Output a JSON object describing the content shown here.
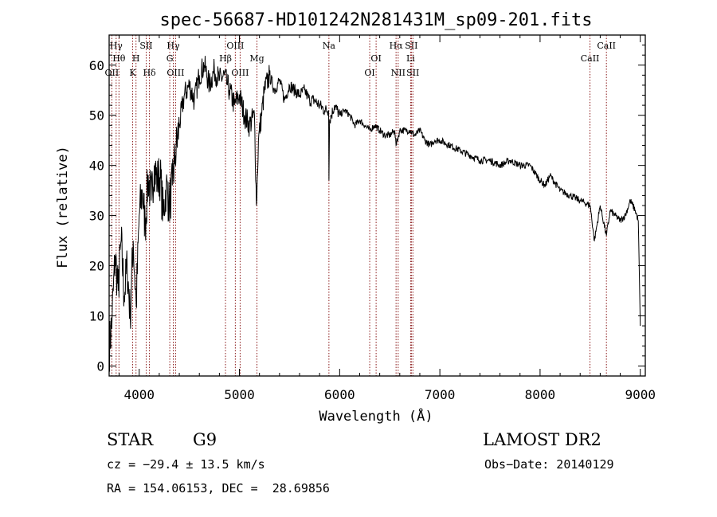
{
  "chart_data": {
    "type": "line",
    "title": "spec-56687-HD101242N281431M_sp09-201.fits",
    "xlabel": "Wavelength (Å)",
    "ylabel": "Flux (relative)",
    "xlim": [
      3700,
      9050
    ],
    "ylim": [
      -2,
      66
    ],
    "xticks": [
      4000,
      5000,
      6000,
      7000,
      8000,
      9000
    ],
    "yticks": [
      0,
      10,
      20,
      30,
      40,
      50,
      60
    ],
    "line_color": "#000000",
    "marker_color": "#8b1a1a",
    "series": [
      {
        "x": [
          3700,
          3730,
          3760,
          3790,
          3820,
          3850,
          3880,
          3910,
          3940,
          3970,
          4000,
          4030,
          4060,
          4090,
          4120,
          4150,
          4180,
          4210,
          4240,
          4270,
          4300,
          4330,
          4360,
          4400,
          4450,
          4500,
          4550,
          4600,
          4650,
          4700,
          4750,
          4800,
          4850,
          4880,
          4900,
          4950,
          5000,
          5050,
          5100,
          5150,
          5170,
          5190,
          5250,
          5300,
          5350,
          5400,
          5450,
          5500,
          5550,
          5600,
          5650,
          5700,
          5750,
          5800,
          5850,
          5890,
          5893,
          5900,
          5950,
          6000,
          6050,
          6100,
          6150,
          6200,
          6250,
          6300,
          6350,
          6400,
          6450,
          6500,
          6550,
          6563,
          6600,
          6650,
          6700,
          6750,
          6800,
          6850,
          6900,
          6950,
          7000,
          7100,
          7200,
          7300,
          7400,
          7500,
          7600,
          7700,
          7800,
          7900,
          8000,
          8050,
          8100,
          8200,
          8300,
          8400,
          8500,
          8542,
          8600,
          8662,
          8700,
          8750,
          8800,
          8850,
          8900,
          8950,
          8980,
          9000
        ],
        "y": [
          3,
          10,
          22,
          15,
          25,
          14,
          20,
          10,
          25,
          12,
          30,
          35,
          28,
          38,
          33,
          40,
          37,
          38,
          30,
          36,
          32,
          36,
          42,
          48,
          54,
          56,
          53,
          58,
          60,
          56,
          59,
          57,
          58,
          56,
          55,
          52,
          54,
          50,
          48,
          50,
          32,
          45,
          55,
          58,
          55,
          57,
          53,
          56,
          55,
          54,
          55,
          53,
          53,
          52,
          51,
          51,
          37,
          49,
          52,
          50,
          51,
          50,
          48,
          49,
          48,
          47,
          48,
          47,
          46,
          46,
          47,
          44,
          47,
          47,
          47,
          46,
          47,
          45,
          44,
          45,
          45,
          44,
          43,
          42,
          41,
          41,
          40,
          41,
          40,
          40,
          37,
          36,
          38,
          35,
          34,
          33,
          32,
          25,
          32,
          26,
          31,
          30,
          29,
          30,
          33,
          31,
          29,
          8
        ]
      }
    ],
    "line_markers": [
      {
        "label": "Hγ",
        "x": 3770,
        "row": 0
      },
      {
        "label": "Hθ",
        "x": 3798,
        "row": 1
      },
      {
        "label": "OII",
        "x": 3727,
        "row": 2
      },
      {
        "label": "SII",
        "x": 4070,
        "row": 0
      },
      {
        "label": "H",
        "x": 3968,
        "row": 1
      },
      {
        "label": "K",
        "x": 3934,
        "row": 2
      },
      {
        "label": "Hδ",
        "x": 4102,
        "row": 2
      },
      {
        "label": "Hγ",
        "x": 4340,
        "row": 0
      },
      {
        "label": "G",
        "x": 4305,
        "row": 1
      },
      {
        "label": "OIII",
        "x": 4363,
        "row": 2
      },
      {
        "label": "OIII",
        "x": 4959,
        "row": 0
      },
      {
        "label": "Hβ",
        "x": 4861,
        "row": 1
      },
      {
        "label": "OIII",
        "x": 5007,
        "row": 2
      },
      {
        "label": "Mg",
        "x": 5175,
        "row": 1
      },
      {
        "label": "Na",
        "x": 5893,
        "row": 0
      },
      {
        "label": "OI",
        "x": 6364,
        "row": 1
      },
      {
        "label": "OI",
        "x": 6300,
        "row": 2
      },
      {
        "label": "Hα",
        "x": 6563,
        "row": 0
      },
      {
        "label": "SII",
        "x": 6716,
        "row": 0
      },
      {
        "label": "Li",
        "x": 6708,
        "row": 1
      },
      {
        "label": "NII",
        "x": 6584,
        "row": 2
      },
      {
        "label": "SII",
        "x": 6731,
        "row": 2
      },
      {
        "label": "CaII",
        "x": 8662,
        "row": 0
      },
      {
        "label": "CaII",
        "x": 8498,
        "row": 1
      }
    ]
  },
  "info": {
    "object_class": "STAR",
    "subclass": "G9",
    "survey": "LAMOST DR2",
    "velocity": "cz = −29.4 ± 13.5 km/s",
    "obs_date": "Obs−Date: 20140129",
    "coords": "RA = 154.06153, DEC =  28.69856"
  }
}
